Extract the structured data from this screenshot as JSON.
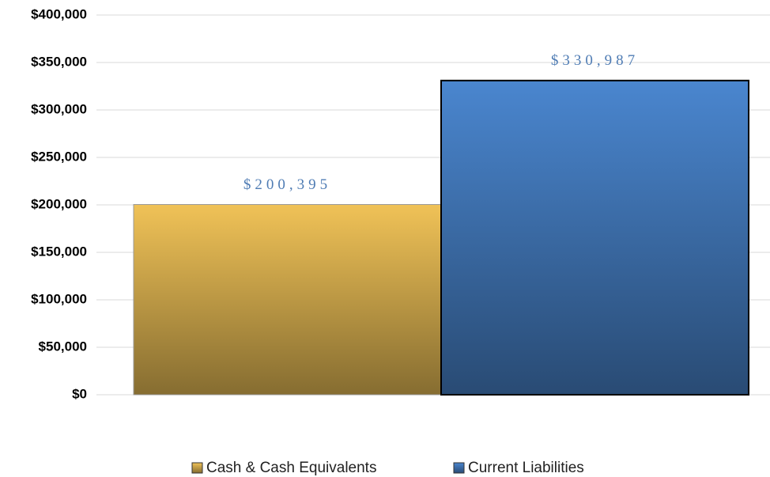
{
  "chart_data": {
    "type": "bar",
    "categories": [
      null
    ],
    "series": [
      {
        "name": "Cash & Cash Equivalents",
        "color": "#f0c257",
        "values": [
          200395
        ],
        "value_labels": [
          "$200,395"
        ]
      },
      {
        "name": "Current Liabilities",
        "color": "#4a86cf",
        "values": [
          330987
        ],
        "value_labels": [
          "$330,987"
        ]
      }
    ],
    "ylim": [
      0,
      400000
    ],
    "yticks": [
      {
        "value": 0,
        "label": "$0"
      },
      {
        "value": 50000,
        "label": "$50,000"
      },
      {
        "value": 100000,
        "label": "$100,000"
      },
      {
        "value": 150000,
        "label": "$150,000"
      },
      {
        "value": 200000,
        "label": "$200,000"
      },
      {
        "value": 250000,
        "label": "$250,000"
      },
      {
        "value": 300000,
        "label": "$300,000"
      },
      {
        "value": 350000,
        "label": "$350,000"
      },
      {
        "value": 400000,
        "label": "$400,000"
      }
    ],
    "grid": true,
    "legend": "bottom"
  }
}
